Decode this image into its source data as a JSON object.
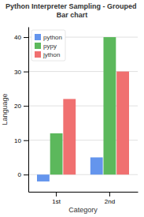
{
  "chart_data": {
    "type": "bar",
    "title": "Python Interpreter Sampling - Grouped Bar chart",
    "x_label": "Category",
    "y_label": "Language",
    "categories": [
      "1st",
      "2nd"
    ],
    "series": [
      {
        "name": "python",
        "color": "#6495ED",
        "values": [
          -2,
          5
        ]
      },
      {
        "name": "pypy",
        "color": "#5CB85C",
        "values": [
          12,
          40
        ]
      },
      {
        "name": "jython",
        "color": "#F07070",
        "values": [
          22,
          30
        ]
      }
    ],
    "ylim": [
      -5,
      43
    ],
    "yticks": [
      0,
      10,
      20,
      30,
      40
    ],
    "grid": true,
    "legend": "upper left"
  }
}
